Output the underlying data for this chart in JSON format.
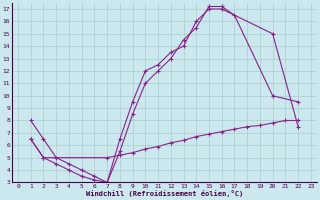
{
  "xlabel": "Windchill (Refroidissement éolien,°C)",
  "bg_color": "#cce8ef",
  "line_color": "#882288",
  "grid_color": "#aacccc",
  "xlim": [
    -0.5,
    23.5
  ],
  "ylim": [
    3,
    17.5
  ],
  "xticks": [
    0,
    1,
    2,
    3,
    4,
    5,
    6,
    7,
    8,
    9,
    10,
    11,
    12,
    13,
    14,
    15,
    16,
    17,
    18,
    19,
    20,
    21,
    22,
    23
  ],
  "yticks": [
    3,
    4,
    5,
    6,
    7,
    8,
    9,
    10,
    11,
    12,
    13,
    14,
    15,
    16,
    17
  ],
  "line1_x": [
    1,
    2,
    3,
    4,
    5,
    6,
    7,
    8,
    9,
    10,
    11,
    12,
    13,
    14,
    15,
    16,
    20,
    22
  ],
  "line1_y": [
    8,
    6.5,
    5,
    4.5,
    4,
    3.5,
    3,
    6.5,
    9.5,
    12,
    12.5,
    13.5,
    14,
    16,
    17,
    17,
    15,
    7.5
  ],
  "line2_x": [
    1,
    2,
    3,
    4,
    5,
    6,
    7,
    8,
    9,
    10,
    11,
    12,
    13,
    14,
    15,
    16,
    17,
    20,
    22
  ],
  "line2_y": [
    6.5,
    5,
    4.5,
    4,
    3.5,
    3.2,
    3,
    5.5,
    8.5,
    11,
    12,
    13,
    14.5,
    15.5,
    17.2,
    17.2,
    16.5,
    10,
    9.5
  ],
  "line3_x": [
    1,
    2,
    7,
    8,
    9,
    10,
    11,
    12,
    13,
    14,
    15,
    16,
    17,
    18,
    19,
    20,
    21,
    22
  ],
  "line3_y": [
    6.5,
    5,
    5,
    5.2,
    5.4,
    5.7,
    5.9,
    6.2,
    6.4,
    6.7,
    6.9,
    7.1,
    7.3,
    7.5,
    7.6,
    7.8,
    8.0,
    8.0
  ]
}
